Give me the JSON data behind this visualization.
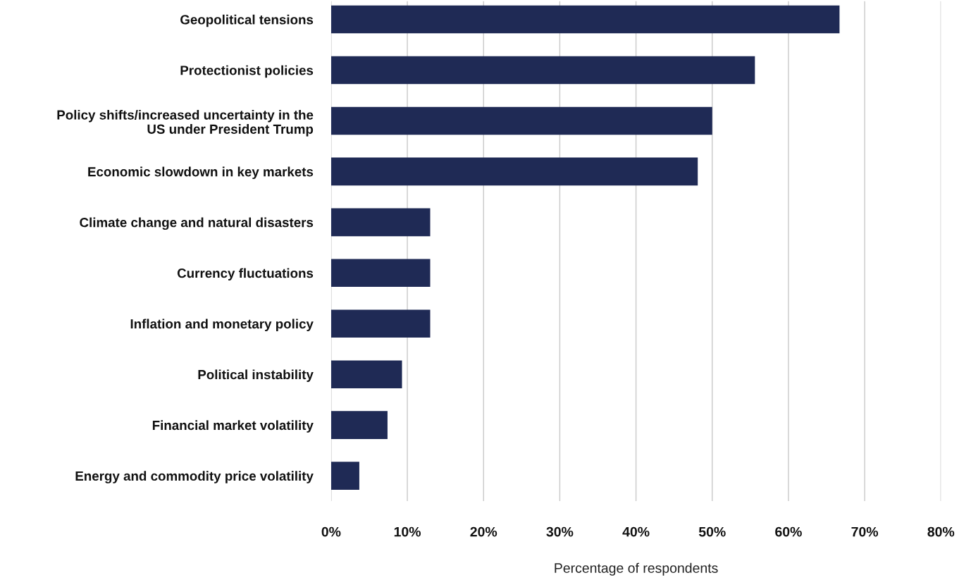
{
  "chart_data": {
    "type": "bar",
    "orientation": "horizontal",
    "xlabel": "Percentage of respondents",
    "categories": [
      "Geopolitical tensions",
      "Protectionist policies",
      "Policy shifts/increased uncertainty in the\nUS under President Trump",
      "Economic slowdown in key markets",
      "Climate change and natural disasters",
      "Currency fluctuations",
      "Inflation and monetary policy",
      "Political instability",
      "Financial market volatility",
      "Energy and commodity price volatility"
    ],
    "values": [
      66.7,
      55.6,
      50,
      48.1,
      13,
      13,
      13,
      9.3,
      7.4,
      3.7
    ],
    "color": "#1f2a55",
    "xlim": [
      0,
      80
    ],
    "xticks": [
      {
        "value": 0,
        "label": "0%"
      },
      {
        "value": 10,
        "label": "10%"
      },
      {
        "value": 20,
        "label": "20%"
      },
      {
        "value": 30,
        "label": "30%"
      },
      {
        "value": 40,
        "label": "40%"
      },
      {
        "value": 50,
        "label": "50%"
      },
      {
        "value": 60,
        "label": "60%"
      },
      {
        "value": 70,
        "label": "70%"
      },
      {
        "value": 80,
        "label": "80%"
      }
    ],
    "grid": "x"
  }
}
